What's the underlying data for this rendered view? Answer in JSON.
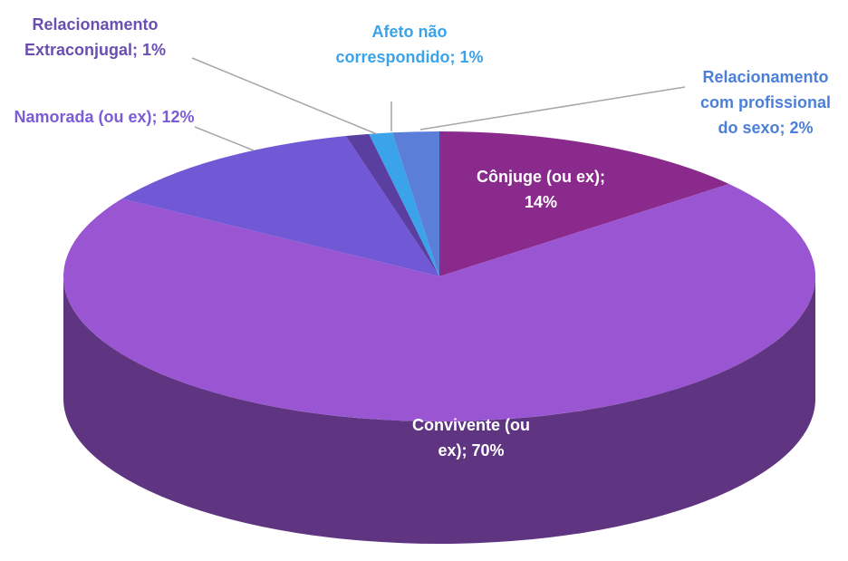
{
  "chart_data": {
    "type": "pie",
    "labels": [
      "Cônjuge (ou ex); 14%",
      "Convivente (ou ex); 70%",
      "Namorada (ou ex); 12%",
      "Relacionamento Extraconjugal; 1%",
      "Afeto não correspondido; 1%",
      "Relacionamento com profissional do sexo; 2%"
    ],
    "values": [
      14,
      70,
      12,
      1,
      1,
      2
    ],
    "colors": [
      "#8a2a8c",
      "#9a55d2",
      "#7159d6",
      "#5b3fa0",
      "#3aa3ea",
      "#5b7fd8"
    ],
    "label_colors": [
      "#ffffff",
      "#ffffff",
      "#7c5cd6",
      "#6a4fb0",
      "#3aa3ea",
      "#4b7fd8"
    ]
  }
}
